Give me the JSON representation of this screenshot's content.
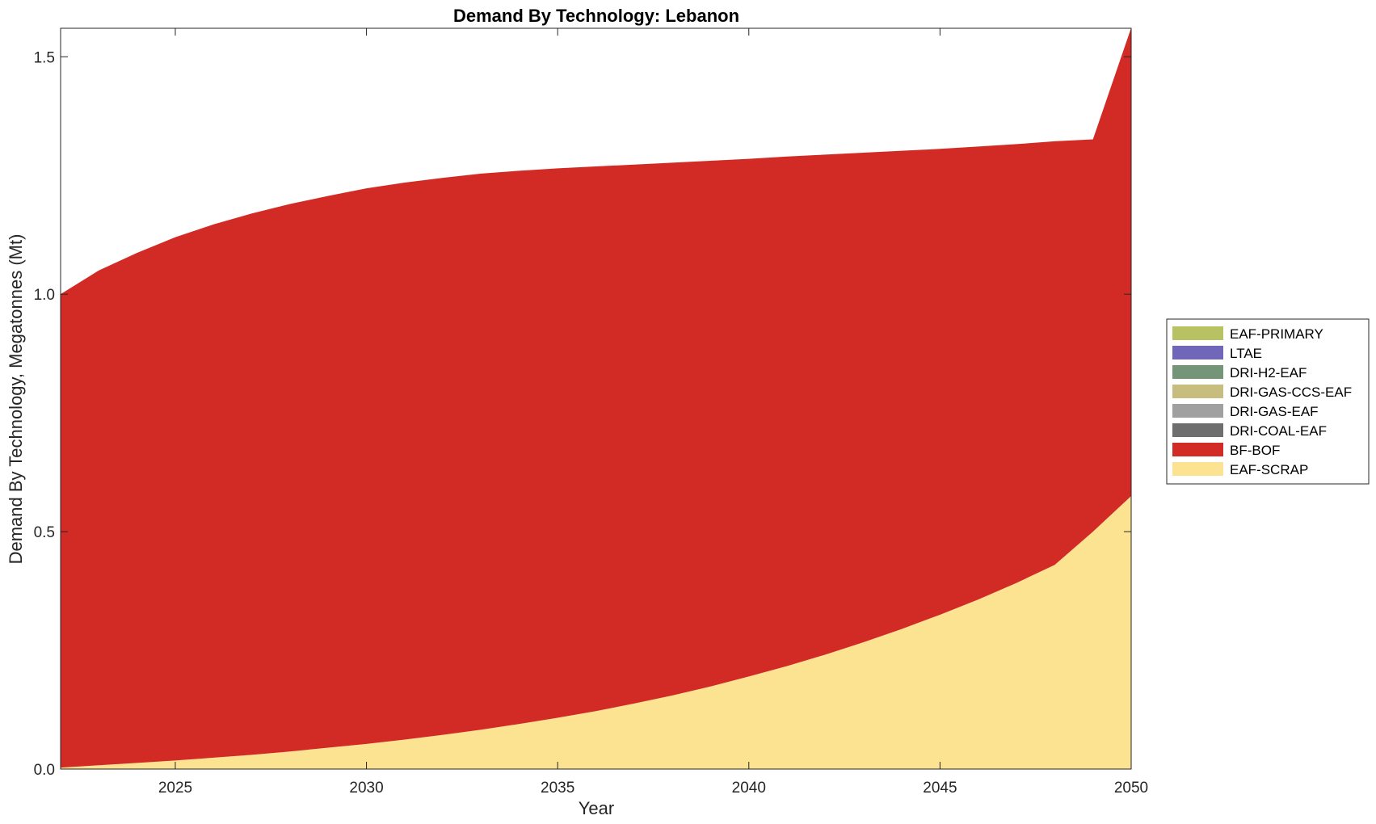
{
  "chart_data": {
    "type": "area",
    "stacked": true,
    "title": "Demand By Technology: Lebanon",
    "xlabel": "Year",
    "ylabel": "Demand By Technology, Megatonnes (Mt)",
    "xlim": [
      2022,
      2050
    ],
    "ylim": [
      0,
      1.56
    ],
    "xticks": [
      2025,
      2030,
      2035,
      2040,
      2045,
      2050
    ],
    "xtick_labels": [
      "2025",
      "2030",
      "2035",
      "2040",
      "2045",
      "2050"
    ],
    "yticks": [
      0,
      0.5,
      1.0,
      1.5
    ],
    "ytick_labels": [
      "0.0",
      "0.5",
      "1.0",
      "1.5"
    ],
    "grid": false,
    "legend_position": "right",
    "x": [
      2022,
      2023,
      2024,
      2025,
      2026,
      2027,
      2028,
      2029,
      2030,
      2031,
      2032,
      2033,
      2034,
      2035,
      2036,
      2037,
      2038,
      2039,
      2040,
      2041,
      2042,
      2043,
      2044,
      2045,
      2046,
      2047,
      2048,
      2049,
      2050
    ],
    "series": [
      {
        "name": "EAF-SCRAP",
        "color": "#fce391",
        "values": [
          0.003,
          0.008,
          0.013,
          0.018,
          0.024,
          0.03,
          0.037,
          0.045,
          0.053,
          0.062,
          0.072,
          0.083,
          0.095,
          0.108,
          0.122,
          0.138,
          0.155,
          0.174,
          0.195,
          0.217,
          0.241,
          0.267,
          0.295,
          0.325,
          0.357,
          0.392,
          0.43,
          0.5,
          0.575
        ]
      },
      {
        "name": "BF-BOF",
        "color": "#d22b25",
        "values": [
          0.997,
          1.042,
          1.074,
          1.102,
          1.123,
          1.14,
          1.153,
          1.162,
          1.17,
          1.173,
          1.173,
          1.171,
          1.165,
          1.157,
          1.147,
          1.135,
          1.122,
          1.107,
          1.09,
          1.073,
          1.053,
          1.031,
          1.007,
          0.981,
          0.954,
          0.924,
          0.892,
          0.826,
          0.986
        ]
      },
      {
        "name": "DRI-COAL-EAF",
        "color": "#6e6e6e",
        "values": [
          0,
          0,
          0,
          0,
          0,
          0,
          0,
          0,
          0,
          0,
          0,
          0,
          0,
          0,
          0,
          0,
          0,
          0,
          0,
          0,
          0,
          0,
          0,
          0,
          0,
          0,
          0,
          0,
          0
        ]
      },
      {
        "name": "DRI-GAS-EAF",
        "color": "#a0a0a0",
        "values": [
          0,
          0,
          0,
          0,
          0,
          0,
          0,
          0,
          0,
          0,
          0,
          0,
          0,
          0,
          0,
          0,
          0,
          0,
          0,
          0,
          0,
          0,
          0,
          0,
          0,
          0,
          0,
          0,
          0
        ]
      },
      {
        "name": "DRI-GAS-CCS-EAF",
        "color": "#c6bd7f",
        "values": [
          0,
          0,
          0,
          0,
          0,
          0,
          0,
          0,
          0,
          0,
          0,
          0,
          0,
          0,
          0,
          0,
          0,
          0,
          0,
          0,
          0,
          0,
          0,
          0,
          0,
          0,
          0,
          0,
          0
        ]
      },
      {
        "name": "DRI-H2-EAF",
        "color": "#759579",
        "values": [
          0,
          0,
          0,
          0,
          0,
          0,
          0,
          0,
          0,
          0,
          0,
          0,
          0,
          0,
          0,
          0,
          0,
          0,
          0,
          0,
          0,
          0,
          0,
          0,
          0,
          0,
          0,
          0,
          0
        ]
      },
      {
        "name": "LTAE",
        "color": "#7067bb",
        "values": [
          0,
          0,
          0,
          0,
          0,
          0,
          0,
          0,
          0,
          0,
          0,
          0,
          0,
          0,
          0,
          0,
          0,
          0,
          0,
          0,
          0,
          0,
          0,
          0,
          0,
          0,
          0,
          0,
          0
        ]
      },
      {
        "name": "EAF-PRIMARY",
        "color": "#b9c262",
        "values": [
          0,
          0,
          0,
          0,
          0,
          0,
          0,
          0,
          0,
          0,
          0,
          0,
          0,
          0,
          0,
          0,
          0,
          0,
          0,
          0,
          0,
          0,
          0,
          0,
          0,
          0,
          0,
          0,
          0
        ]
      }
    ],
    "legend_order": [
      "EAF-PRIMARY",
      "LTAE",
      "DRI-H2-EAF",
      "DRI-GAS-CCS-EAF",
      "DRI-GAS-EAF",
      "DRI-COAL-EAF",
      "BF-BOF",
      "EAF-SCRAP"
    ]
  }
}
